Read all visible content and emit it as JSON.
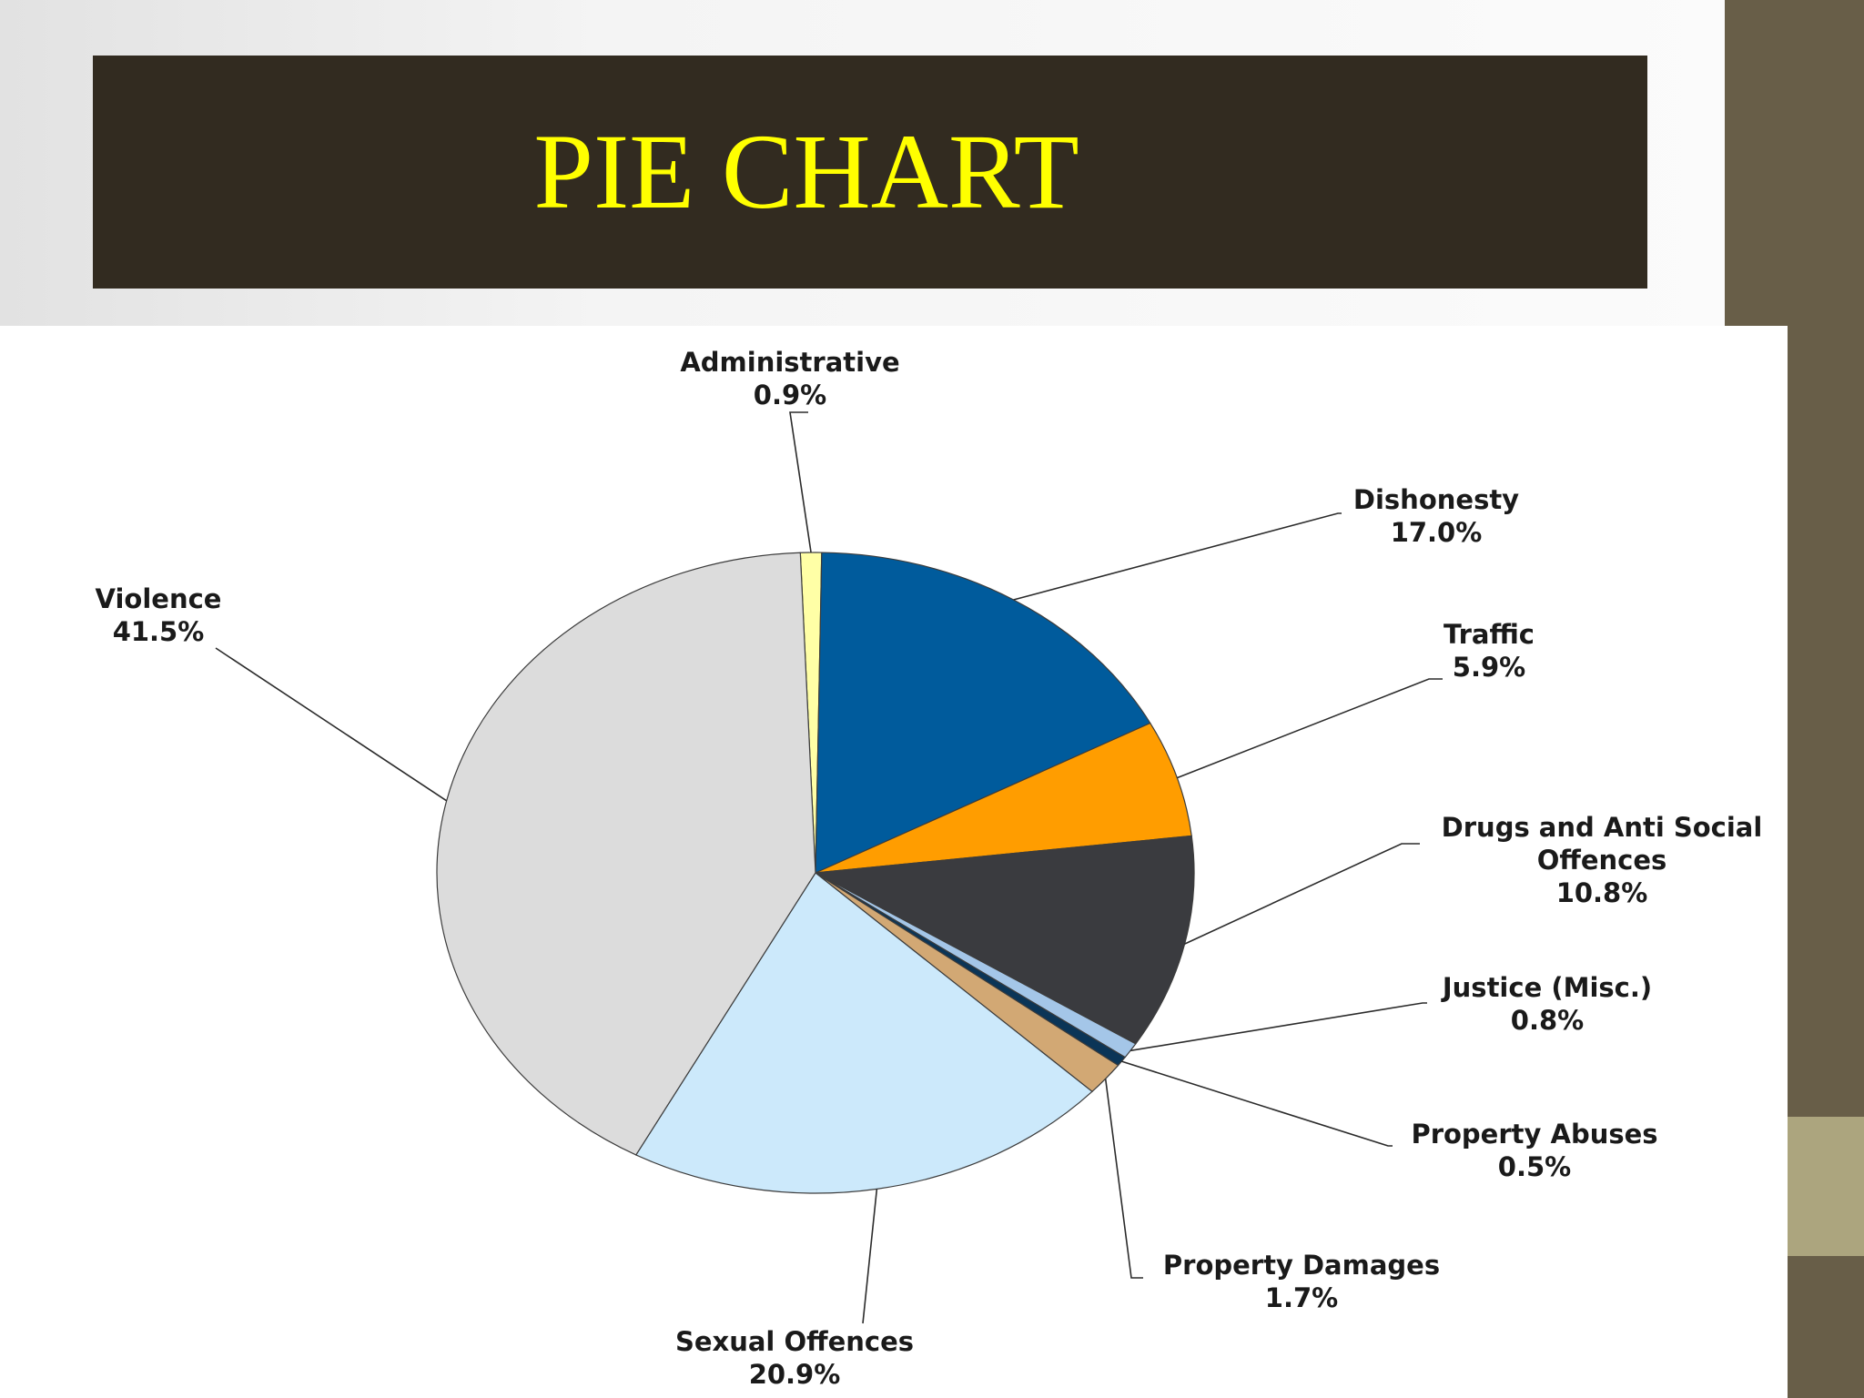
{
  "slide": {
    "title": "PIE CHART"
  },
  "chart_data": {
    "type": "pie",
    "title": "",
    "start_angle_deg": -2.3,
    "direction": "clockwise",
    "slices": [
      {
        "label": "Administrative",
        "value": 0.9,
        "value_label": "0.9%",
        "color": "#ffffa6"
      },
      {
        "label": "Dishonesty",
        "value": 17.0,
        "value_label": "17.0%",
        "color": "#005b9c"
      },
      {
        "label": "Traffic",
        "value": 5.9,
        "value_label": "5.9%",
        "color": "#ff9d00"
      },
      {
        "label": "Drugs and Anti Social Offences",
        "label_lines": [
          "Drugs and Anti Social",
          "Offences"
        ],
        "value": 10.8,
        "value_label": "10.8%",
        "color": "#3a3b3f"
      },
      {
        "label": "Justice (Misc.)",
        "value": 0.8,
        "value_label": "0.8%",
        "color": "#a4c6e8"
      },
      {
        "label": "Property Abuses",
        "value": 0.5,
        "value_label": "0.5%",
        "color": "#0b3557"
      },
      {
        "label": "Property Damages",
        "value": 1.7,
        "value_label": "1.7%",
        "color": "#d2a874"
      },
      {
        "label": "Sexual Offences",
        "value": 20.9,
        "value_label": "20.9%",
        "color": "#cce9fb"
      },
      {
        "label": "Violence",
        "value": 41.5,
        "value_label": "41.5%",
        "color": "#dcdcdc"
      }
    ]
  }
}
